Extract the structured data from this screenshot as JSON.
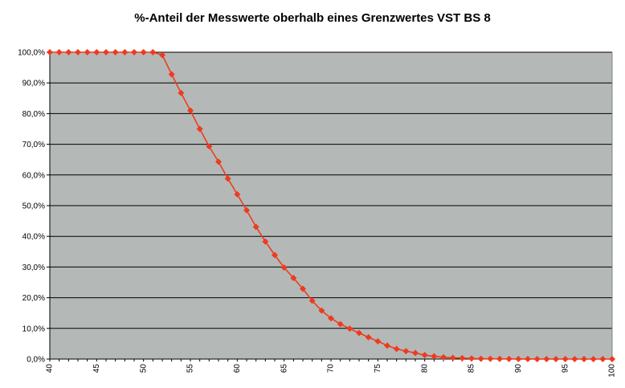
{
  "chart_data": {
    "type": "line",
    "title": "%-Anteil der Messwerte oberhalb eines Grenzwertes VST BS 8",
    "xlabel": "",
    "ylabel": "",
    "xlim": [
      40,
      100
    ],
    "ylim": [
      0,
      100
    ],
    "y_ticks": [
      "0,0%",
      "10,0%",
      "20,0%",
      "30,0%",
      "40,0%",
      "50,0%",
      "60,0%",
      "70,0%",
      "80,0%",
      "90,0%",
      "100,0%"
    ],
    "x_ticks": [
      "40",
      "45",
      "50",
      "55",
      "60",
      "65",
      "70",
      "75",
      "80",
      "85",
      "90",
      "95",
      "100"
    ],
    "grid": "horizontal",
    "legend": "none",
    "plot_background": "#b4b9b8",
    "series_color": "#ee3b1f",
    "series": [
      {
        "x": [
          40,
          41,
          42,
          43,
          44,
          45,
          46,
          47,
          48,
          49,
          50,
          51,
          52,
          53,
          54,
          55,
          56,
          57,
          58,
          59,
          60,
          61,
          62,
          63,
          64,
          65,
          66,
          67,
          68,
          69,
          70,
          71,
          72,
          73,
          74,
          75,
          76,
          77,
          78,
          79,
          80,
          81,
          82,
          83,
          84,
          85,
          86,
          87,
          88,
          89,
          90,
          91,
          92,
          93,
          94,
          95,
          96,
          97,
          98,
          99,
          100
        ],
        "values": [
          100,
          100,
          100,
          100,
          100,
          100,
          100,
          100,
          100,
          100,
          100,
          100,
          99.1,
          92.8,
          86.7,
          81.0,
          75.0,
          69.3,
          64.3,
          58.8,
          53.7,
          48.5,
          43.1,
          38.3,
          33.9,
          29.8,
          26.4,
          22.9,
          19.0,
          15.8,
          13.3,
          11.4,
          9.9,
          8.5,
          7.1,
          5.8,
          4.4,
          3.3,
          2.6,
          2.0,
          1.3,
          0.9,
          0.6,
          0.4,
          0.3,
          0.2,
          0.1,
          0.1,
          0.05,
          0.04,
          0.03,
          0.02,
          0.01,
          0.01,
          0,
          0,
          0,
          0,
          0,
          0,
          0
        ]
      }
    ]
  }
}
